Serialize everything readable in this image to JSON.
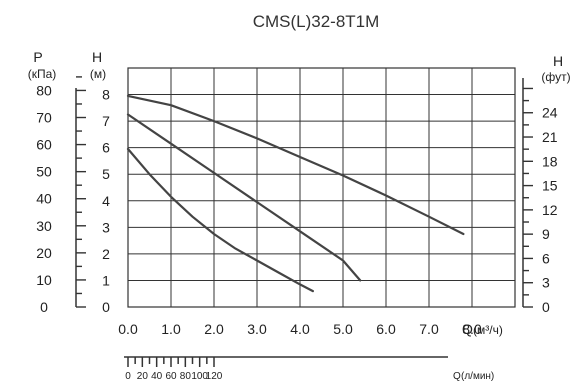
{
  "chart_data": {
    "type": "line",
    "title": "CMS(L)32-8T1M",
    "x_axis": {
      "label": "Q",
      "unit": "(м³/ч)",
      "range": [
        0,
        9
      ],
      "ticks": [
        "0.0",
        "1.0",
        "2.0",
        "3.0",
        "4.0",
        "5.0",
        "6.0",
        "7.0",
        "8.0"
      ]
    },
    "x2_axis": {
      "label": "Q",
      "unit": "(л/мин)",
      "ticks": [
        {
          "value": 0,
          "label": "0"
        },
        {
          "value": 20,
          "label": "20"
        },
        {
          "value": 40,
          "label": "40"
        },
        {
          "value": 60,
          "label": "60"
        },
        {
          "value": 80,
          "label": "80"
        },
        {
          "value": 100,
          "label": "100"
        },
        {
          "value": 120,
          "label": "120"
        }
      ]
    },
    "y_axis": {
      "label": "H",
      "unit": "(м)",
      "range": [
        0,
        9
      ],
      "ticks": [
        "0",
        "1",
        "2",
        "3",
        "4",
        "5",
        "6",
        "7",
        "8"
      ]
    },
    "y_axis_pressure": {
      "label": "P",
      "unit": "(кПа)",
      "ticks": [
        0,
        10,
        20,
        30,
        40,
        50,
        60,
        70,
        80
      ]
    },
    "y_axis_right": {
      "label": "H",
      "unit": "(фут)",
      "ticks": [
        0,
        3,
        6,
        9,
        12,
        15,
        18,
        21,
        24
      ]
    },
    "grid": true,
    "series": [
      {
        "x": [
          0,
          1.0,
          2.0,
          3.0,
          4.0,
          5.0,
          6.0,
          7.0,
          7.8
        ],
        "y": [
          7.95,
          7.6,
          7.0,
          6.35,
          5.65,
          4.95,
          4.2,
          3.4,
          2.75
        ]
      },
      {
        "x": [
          0,
          1.0,
          2.0,
          3.0,
          4.0,
          5.0,
          5.4
        ],
        "y": [
          7.25,
          6.15,
          5.05,
          3.95,
          2.85,
          1.75,
          1.0
        ]
      },
      {
        "x": [
          0,
          0.5,
          1.0,
          1.5,
          2.0,
          2.5,
          3.0,
          3.5,
          4.0,
          4.3
        ],
        "y": [
          5.95,
          5.0,
          4.15,
          3.4,
          2.75,
          2.2,
          1.75,
          1.3,
          0.85,
          0.6
        ]
      }
    ],
    "colors": {
      "curve": "#444444",
      "grid": "#333333",
      "text": "#222222"
    }
  }
}
